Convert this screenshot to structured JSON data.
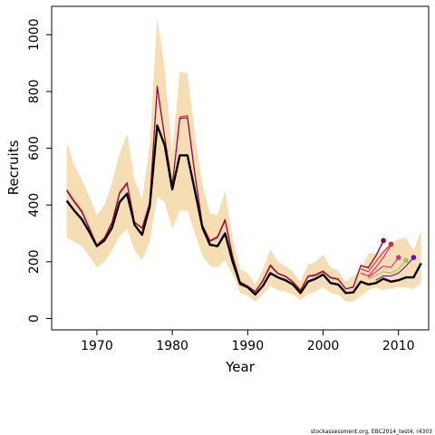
{
  "chart_data": {
    "type": "line",
    "xlabel": "Year",
    "ylabel": "Recruits",
    "xlim": [
      1964,
      2014
    ],
    "ylim": [
      -40,
      1100
    ],
    "x_ticks": [
      1970,
      1980,
      1990,
      2000,
      2010
    ],
    "y_ticks": [
      0,
      200,
      400,
      600,
      800,
      1000
    ],
    "grid": false,
    "legend": "none",
    "footnote": "stockassessment.org, EBC2014_test4, r4303",
    "colors": {
      "band": "#f5deb3",
      "main": "#000000",
      "retro": [
        "#d62b2b",
        "#8b0046",
        "#e8147e",
        "#d62b2b",
        "#e0308a",
        "#9acd32",
        "#6a0dad"
      ]
    },
    "band": {
      "x": [
        1966,
        1967,
        1968,
        1969,
        1970,
        1971,
        1972,
        1973,
        1974,
        1975,
        1976,
        1977,
        1978,
        1979,
        1980,
        1981,
        1982,
        1983,
        1984,
        1985,
        1986,
        1987,
        1988,
        1989,
        1990,
        1991,
        1992,
        1993,
        1994,
        1995,
        1996,
        1997,
        1998,
        1999,
        2000,
        2001,
        2002,
        2003,
        2004,
        2005,
        2006,
        2007,
        2008,
        2009,
        2010,
        2011,
        2012,
        2013
      ],
      "upper": [
        620,
        540,
        490,
        430,
        365,
        400,
        480,
        580,
        650,
        490,
        420,
        610,
        1060,
        880,
        580,
        870,
        865,
        650,
        470,
        370,
        365,
        450,
        280,
        175,
        160,
        120,
        170,
        245,
        200,
        185,
        165,
        130,
        190,
        200,
        225,
        180,
        170,
        130,
        150,
        170,
        230,
        230,
        240,
        265,
        280,
        285,
        240,
        310
      ],
      "lower": [
        285,
        270,
        255,
        220,
        180,
        200,
        240,
        290,
        315,
        240,
        205,
        270,
        430,
        410,
        315,
        380,
        380,
        300,
        220,
        185,
        180,
        205,
        155,
        90,
        80,
        60,
        85,
        115,
        100,
        95,
        85,
        65,
        85,
        95,
        110,
        90,
        85,
        60,
        60,
        80,
        100,
        110,
        100,
        105,
        110,
        110,
        105,
        125
      ]
    },
    "series": [
      {
        "color": "#000000",
        "x": [
          1966,
          1967,
          1968,
          1969,
          1970,
          1971,
          1972,
          1973,
          1974,
          1975,
          1976,
          1977,
          1978,
          1979,
          1980,
          1981,
          1982,
          1983,
          1984,
          1985,
          1986,
          1987,
          1988,
          1989,
          1990,
          1991,
          1992,
          1993,
          1994,
          1995,
          1996,
          1997,
          1998,
          1999,
          2000,
          2001,
          2002,
          2003,
          2004,
          2005,
          2006,
          2007,
          2008,
          2009,
          2010,
          2011,
          2012,
          2013
        ],
        "values": [
          415,
          380,
          350,
          305,
          255,
          275,
          320,
          410,
          440,
          330,
          295,
          395,
          680,
          610,
          455,
          575,
          575,
          450,
          320,
          260,
          255,
          300,
          200,
          122,
          110,
          85,
          115,
          160,
          145,
          135,
          120,
          90,
          130,
          140,
          155,
          125,
          120,
          90,
          92,
          130,
          120,
          125,
          140,
          130,
          135,
          145,
          145,
          195
        ]
      },
      {
        "color": "#d62b2b",
        "x": [
          1966,
          1967,
          1968,
          1969,
          1970,
          1971,
          1972,
          1973,
          1974,
          1975,
          1976,
          1977,
          1978,
          1979,
          1980,
          1981,
          1982,
          1983,
          1984,
          1985,
          1986,
          1987,
          1988,
          1989,
          1990,
          1991,
          1992,
          1993,
          1994,
          1995,
          1996,
          1997,
          1998,
          1999,
          2000,
          2001,
          2002,
          2003,
          2004,
          2005,
          2006,
          2007,
          2008
        ],
        "values": [
          455,
          415,
          380,
          320,
          260,
          285,
          340,
          445,
          480,
          340,
          320,
          410,
          820,
          640,
          470,
          710,
          715,
          510,
          330,
          275,
          290,
          350,
          220,
          130,
          115,
          95,
          135,
          190,
          160,
          150,
          130,
          100,
          150,
          155,
          168,
          145,
          140,
          105,
          112,
          188,
          178,
          220,
          272
        ]
      },
      {
        "color": "#8b0046",
        "x": [
          1966,
          1967,
          1968,
          1969,
          1970,
          1971,
          1972,
          1973,
          1974,
          1975,
          1976,
          1977,
          1978,
          1979,
          1980,
          1981,
          1982,
          1983,
          1984,
          1985,
          1986,
          1987,
          1988,
          1989,
          1990,
          1991,
          1992,
          1993,
          1994,
          1995,
          1996,
          1997,
          1998,
          1999,
          2000,
          2001,
          2002,
          2003,
          2004,
          2005,
          2006,
          2007,
          2008
        ],
        "values": [
          450,
          410,
          375,
          315,
          258,
          282,
          335,
          440,
          475,
          338,
          318,
          405,
          815,
          635,
          468,
          705,
          708,
          505,
          328,
          272,
          285,
          345,
          218,
          128,
          114,
          94,
          132,
          185,
          158,
          148,
          128,
          99,
          148,
          152,
          165,
          143,
          138,
          104,
          110,
          185,
          180,
          222,
          275
        ]
      },
      {
        "color": "#e8147e",
        "x": [
          2005,
          2006,
          2007,
          2008,
          2009
        ],
        "values": [
          160,
          150,
          180,
          215,
          260
        ]
      },
      {
        "color": "#d62b2b",
        "x": [
          2005,
          2006,
          2007,
          2008,
          2009
        ],
        "values": [
          175,
          165,
          200,
          235,
          262
        ]
      },
      {
        "color": "#e0308a",
        "x": [
          2006,
          2007,
          2008,
          2009,
          2010
        ],
        "values": [
          145,
          165,
          185,
          180,
          215
        ]
      },
      {
        "color": "#9acd32",
        "x": [
          2006,
          2007,
          2008,
          2009,
          2010,
          2011
        ],
        "values": [
          140,
          150,
          165,
          160,
          175,
          205
        ]
      },
      {
        "color": "#6a0dad",
        "x": [
          2007,
          2008,
          2009,
          2010,
          2011,
          2012
        ],
        "values": [
          135,
          150,
          150,
          160,
          185,
          215
        ]
      }
    ],
    "endpoints": [
      {
        "x": 2008,
        "y": 275,
        "color": "#8b0046"
      },
      {
        "x": 2009,
        "y": 262,
        "color": "#ff1a1a"
      },
      {
        "x": 2010,
        "y": 215,
        "color": "#e0308a"
      },
      {
        "x": 2011,
        "y": 205,
        "color": "#9acd32"
      },
      {
        "x": 2012,
        "y": 215,
        "color": "#6a0dad"
      }
    ]
  }
}
